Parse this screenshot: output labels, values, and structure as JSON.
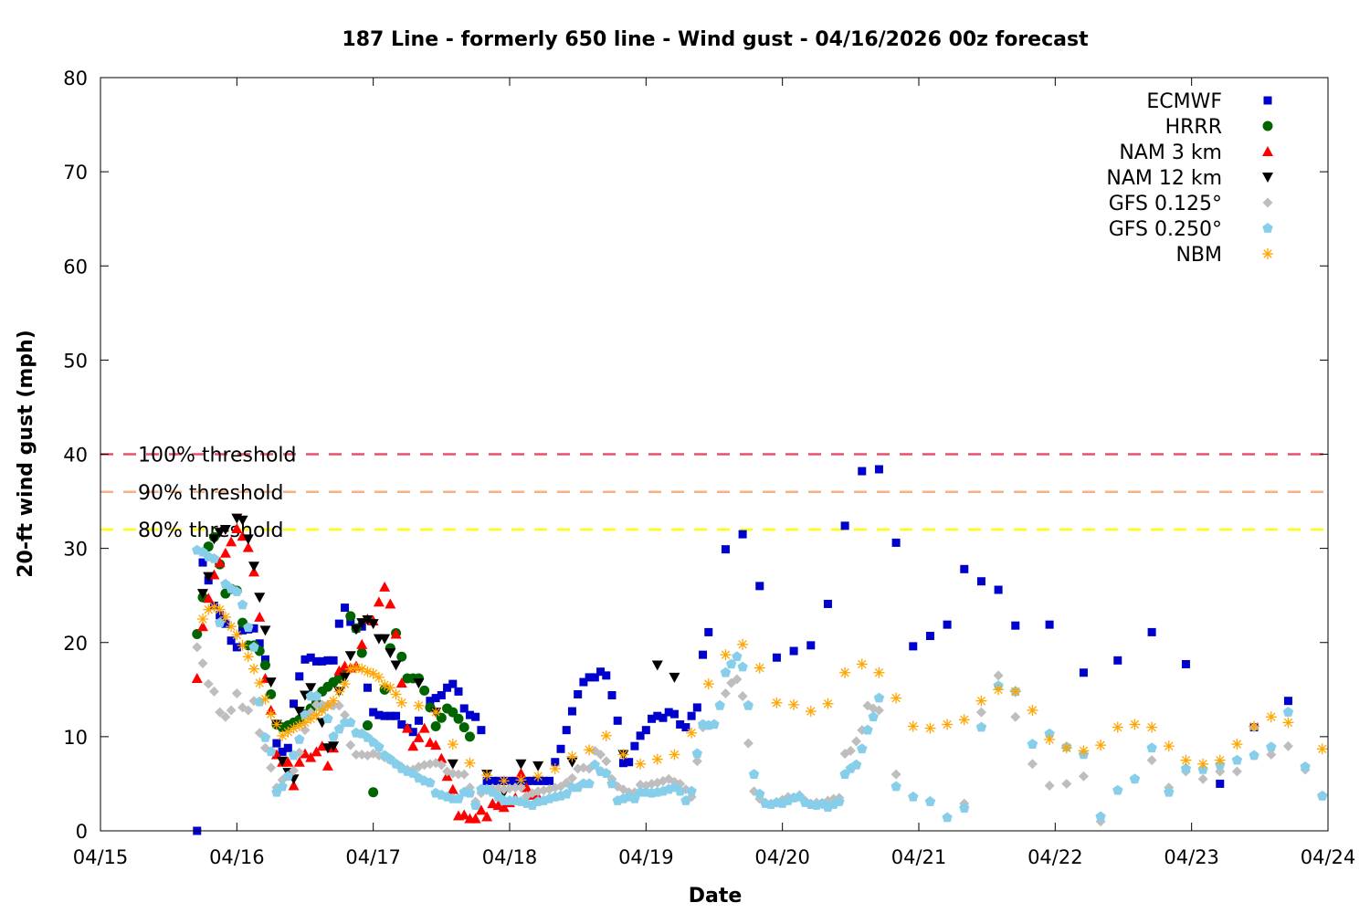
{
  "chart_data": {
    "type": "scatter",
    "title": "187 Line - formerly 650 line - Wind gust - 04/16/2026 00z forecast",
    "xlabel": "Date",
    "ylabel": "20-ft wind gust (mph)",
    "x_unit": "hours since 04/15 00z",
    "xlim": [
      0,
      216
    ],
    "ylim": [
      0,
      80
    ],
    "yticks": [
      0,
      10,
      20,
      30,
      40,
      50,
      60,
      70,
      80
    ],
    "xticks": [
      {
        "hour": 0,
        "label": "04/15"
      },
      {
        "hour": 24,
        "label": "04/16"
      },
      {
        "hour": 48,
        "label": "04/17"
      },
      {
        "hour": 72,
        "label": "04/18"
      },
      {
        "hour": 96,
        "label": "04/19"
      },
      {
        "hour": 120,
        "label": "04/20"
      },
      {
        "hour": 144,
        "label": "04/21"
      },
      {
        "hour": 168,
        "label": "04/22"
      },
      {
        "hour": 192,
        "label": "04/23"
      },
      {
        "hour": 216,
        "label": "04/24"
      }
    ],
    "legend_position": "top-right",
    "thresholds": [
      {
        "label": "100% threshold",
        "value": 40,
        "color": "#e8506e"
      },
      {
        "label": "90% threshold",
        "value": 36,
        "color": "#f4b183"
      },
      {
        "label": "80% threshold",
        "value": 32,
        "color": "#ffff00"
      }
    ],
    "series": [
      {
        "name": "ECMWF",
        "marker": "square",
        "color": "#0000cc",
        "segments": [
          {
            "start": 17,
            "step": 1,
            "values": [
              0,
              28.5,
              26.6,
              23.9,
              22.9,
              22.0,
              20.2,
              19.5,
              21.3,
              21.4,
              21.5,
              19.9,
              18.2,
              null,
              9.3,
              8.4,
              8.8,
              13.5,
              16.4,
              18.2,
              18.4,
              18.0,
              18.0,
              18.1,
              18.1,
              22.0,
              23.7,
              22.2,
              21.5,
              21.7,
              15.2,
              12.6,
              12.3,
              12.2,
              12.2,
              12.2,
              11.3,
              10.9,
              10.5,
              11.7,
              null,
              13.8,
              14.1,
              14.4,
              15.2,
              15.6,
              14.8,
              13.0,
              12.3,
              12.1,
              10.7,
              5.3,
              5.3,
              5.3,
              5.3,
              5.3,
              5.3,
              5.3,
              5.3,
              5.3,
              5.3,
              5.3,
              5.3,
              7.3,
              8.7,
              10.7,
              12.7,
              14.5,
              15.8,
              16.3,
              16.3,
              16.9,
              16.5,
              14.4,
              11.7,
              7.2,
              7.3,
              9.0,
              10.1,
              10.7,
              11.9,
              12.2,
              12.0,
              12.6,
              12.4,
              11.3,
              11.0,
              12.2,
              13.1,
              18.7,
              21.1
            ]
          },
          {
            "start": 110,
            "step": 3,
            "values": [
              29.9,
              31.5,
              26.0,
              18.4,
              19.1,
              19.7,
              24.1,
              32.4,
              38.2,
              38.4,
              30.6,
              19.6,
              20.7,
              21.9,
              27.8,
              26.5,
              25.6,
              21.8
            ]
          },
          {
            "start": 167,
            "step": 6,
            "values": [
              21.9,
              16.8,
              18.1,
              21.1,
              17.7,
              5.0,
              11.0,
              13.8
            ]
          }
        ]
      },
      {
        "name": "HRRR",
        "marker": "circle",
        "color": "#006400",
        "segments": [
          {
            "start": 17,
            "step": 1,
            "values": [
              20.9,
              24.8,
              30.2,
              31.2,
              28.3,
              25.2,
              25.7,
              25.5,
              22.1,
              19.7,
              19.7,
              19.1,
              17.6,
              14.5,
              11.3,
              11.0,
              11.2,
              11.5,
              11.8,
              12.4,
              13.0,
              13.6,
              14.8,
              15.3,
              15.8,
              16.2,
              17.0,
              22.8,
              21.5,
              18.9,
              11.2,
              4.1,
              null,
              15.0,
              19.4,
              21.0,
              18.5,
              16.2,
              16.2,
              16.2,
              14.9,
              13.1,
              11.1,
              12.0,
              13.0,
              12.6,
              11.9,
              11.0,
              10.0
            ]
          }
        ]
      },
      {
        "name": "NAM 3 km",
        "marker": "triangle-up",
        "color": "#ff0000",
        "segments": [
          {
            "start": 17,
            "step": 1,
            "values": [
              16.2,
              21.7,
              24.7,
              27.2,
              28.5,
              29.5,
              30.7,
              32.1,
              31.3,
              30.1,
              27.5,
              22.7,
              16.2,
              12.8,
              8.1,
              7.3,
              7.3,
              4.8,
              7.3,
              8.2,
              7.8,
              8.4,
              9.0,
              6.9,
              8.8,
              17.0,
              17.5,
              17.3,
              17.5,
              19.8,
              22.5,
              22.3,
              24.3,
              25.9,
              24.1,
              20.9,
              15.7,
              10.9,
              9.0,
              9.9,
              10.9,
              9.4,
              9.1,
              7.7,
              5.8,
              4.4,
              1.6,
              1.7,
              1.3,
              1.3,
              2.2,
              1.5,
              2.9,
              2.7,
              2.5,
              3.0,
              3.5,
              6.1,
              4.6,
              3.8,
              3.6
            ]
          }
        ]
      },
      {
        "name": "NAM 12 km",
        "marker": "triangle-down",
        "color": "#000000",
        "points": [
          [
            18,
            25.2
          ],
          [
            19,
            27.0
          ],
          [
            20,
            31.0
          ],
          [
            21,
            31.7
          ],
          [
            22,
            32.0
          ],
          [
            24,
            33.2
          ],
          [
            25,
            33.0
          ],
          [
            26,
            31.0
          ],
          [
            27,
            28.1
          ],
          [
            28,
            24.8
          ],
          [
            29,
            21.3
          ],
          [
            30,
            15.8
          ],
          [
            31,
            11.3
          ],
          [
            32,
            7.4
          ],
          [
            33,
            6.2
          ],
          [
            34,
            5.5
          ],
          [
            35,
            12.7
          ],
          [
            36,
            14.4
          ],
          [
            37,
            15.2
          ],
          [
            39,
            11.5
          ],
          [
            40,
            8.8
          ],
          [
            41,
            9.0
          ],
          [
            42,
            14.8
          ],
          [
            43,
            16.3
          ],
          [
            44,
            18.6
          ],
          [
            45,
            21.4
          ],
          [
            46,
            22.1
          ],
          [
            47,
            22.4
          ],
          [
            48,
            22.0
          ],
          [
            49,
            20.4
          ],
          [
            50,
            20.4
          ],
          [
            51,
            18.9
          ],
          [
            52,
            17.6
          ],
          [
            56,
            15.7
          ],
          [
            59,
            12.6
          ],
          [
            62,
            7.1
          ],
          [
            68,
            6.0
          ],
          [
            71,
            4.1
          ],
          [
            74,
            7.1
          ],
          [
            77,
            6.9
          ],
          [
            83,
            7.3
          ],
          [
            92,
            8.1
          ],
          [
            98,
            17.6
          ],
          [
            101,
            16.3
          ]
        ]
      },
      {
        "name": "GFS 0.125°",
        "marker": "diamond",
        "color": "#bebebe",
        "segments": [
          {
            "start": 17,
            "step": 1,
            "values": [
              19.5,
              17.8,
              15.6,
              14.8,
              12.6,
              12.1,
              12.8,
              14.6,
              13.1,
              12.8,
              13.8,
              10.4,
              8.8,
              6.7,
              4.6,
              5.4,
              5.8,
              6.4,
              8.3,
              10.7,
              12.6,
              13.4,
              13.4,
              13.4,
              13.3,
              13.3,
              12.3,
              9.1,
              8.1,
              8.1,
              8.0,
              8.2,
              8.0,
              7.8,
              7.5,
              7.1,
              6.8,
              6.5,
              6.5,
              6.8,
              7.0,
              7.1,
              7.2,
              7.0,
              6.3,
              6.1,
              6.0,
              6.0,
              4.6,
              3.1,
              4.0,
              4.3,
              4.5,
              4.5,
              4.4,
              4.5,
              4.6,
              4.6,
              3.7,
              4.0,
              4.2,
              4.3,
              4.4,
              4.6,
              4.7,
              5.1,
              5.6,
              6.6,
              6.7,
              6.6,
              8.5,
              8.1,
              7.4,
              5.5,
              4.7,
              4.4,
              4.1,
              4.1,
              4.9,
              4.8,
              5.0,
              5.1,
              5.3,
              5.5,
              5.2,
              5.0,
              4.4,
              3.6,
              7.4,
              11.0
            ]
          },
          {
            "start": 110,
            "step": 1,
            "values": [
              14.6,
              15.7,
              16.1,
              14.3,
              9.3,
              4.2,
              3.4,
              3.0,
              2.9,
              3.0,
              3.3,
              3.6,
              3.5,
              3.8,
              3.2,
              2.9,
              3.0,
              2.8,
              3.2,
              3.4,
              3.5,
              8.2,
              8.5,
              9.5,
              10.7,
              13.3,
              13.0,
              12.8
            ]
          },
          {
            "start": 140,
            "step": 3,
            "values": [
              6.0,
              null,
              null,
              null,
              2.9,
              12.6,
              16.5,
              12.1,
              7.1,
              4.8,
              5.0,
              5.8,
              1.0,
              null,
              5.5,
              7.5,
              4.6,
              6.3,
              5.5,
              6.3,
              6.3,
              11.0,
              8.1,
              9.0,
              6.5,
              3.7
            ]
          }
        ]
      },
      {
        "name": "GFS 0.250°",
        "marker": "pentagon",
        "color": "#87ceeb",
        "segments": [
          {
            "start": 17,
            "step": 1,
            "values": [
              29.8,
              29.6,
              29.1,
              28.9,
              22.1,
              26.2,
              25.7,
              25.4,
              24.0,
              21.6,
              19.5,
              13.7,
              9.9,
              8.4,
              4.1,
              4.7,
              5.8,
              8.0,
              9.7,
              12.3,
              14.3,
              14.3,
              13.0,
              11.9,
              10.0,
              10.8,
              11.5,
              11.5,
              10.4,
              10.3,
              9.9,
              9.4,
              8.9,
              8.0,
              7.6,
              7.1,
              6.6,
              6.3,
              6.1,
              5.6,
              5.3,
              5.1,
              4.0,
              3.8,
              3.6,
              3.4,
              3.4,
              4.1,
              4.0,
              2.7,
              4.4,
              4.4,
              4.1,
              3.6,
              3.2,
              3.2,
              3.2,
              3.1,
              2.9,
              2.7,
              3.1,
              3.2,
              3.4,
              3.6,
              3.7,
              3.9,
              4.6,
              4.6,
              5.0,
              5.0,
              7.0,
              6.3,
              6.1,
              5.0,
              3.2,
              3.4,
              3.6,
              3.4,
              4.1,
              4.1,
              4.0,
              4.1,
              4.2,
              4.4,
              4.6,
              4.2,
              3.2,
              4.2,
              8.2,
              11.3,
              11.2,
              11.3,
              13.3,
              16.8,
              17.7,
              18.5,
              17.4,
              13.3,
              6.0,
              3.9,
              2.9,
              2.8,
              3.0,
              2.9,
              3.2,
              3.5,
              3.6,
              3.0,
              2.8,
              2.7,
              2.9,
              2.5,
              2.8,
              3.1,
              6.0,
              6.6,
              7.0,
              8.7,
              10.7,
              12.1,
              14.1
            ]
          },
          {
            "start": 140,
            "step": 3,
            "values": [
              4.7,
              3.6,
              3.1,
              1.4,
              2.4,
              11.0,
              15.4,
              14.8,
              9.2,
              10.3,
              8.9,
              8.1,
              1.5,
              4.3,
              5.5,
              8.8,
              4.1,
              6.6,
              6.5,
              7.0,
              7.5,
              8.0,
              8.9,
              12.6,
              6.8,
              3.7
            ]
          }
        ]
      },
      {
        "name": "NBM",
        "marker": "asterisk",
        "color": "#ffa500",
        "segments": [
          {
            "start": 18,
            "step": 1,
            "values": [
              22.5,
              23.5,
              23.8,
              23.5,
              22.7,
              21.7,
              20.8,
              19.7,
              18.5,
              17.2,
              15.7,
              14.0,
              12.4,
              11.3,
              10.1,
              10.5,
              10.9,
              11.2,
              11.5,
              11.9,
              12.3,
              12.8,
              13.3,
              13.8,
              14.8,
              15.6,
              17.2,
              17.3,
              17.2,
              16.9,
              16.7,
              16.3,
              15.5,
              15.2,
              14.5,
              13.6
            ]
          },
          {
            "start": 56,
            "step": 3,
            "values": [
              13.3,
              12.6,
              9.2,
              7.2,
              5.9,
              5.3,
              5.4,
              5.8,
              6.6,
              7.9,
              8.6,
              10.1,
              8.1,
              7.1,
              7.6,
              8.1,
              10.4,
              15.6,
              18.7,
              19.8,
              17.3,
              13.6,
              13.4,
              12.7,
              13.5,
              16.8,
              17.7,
              16.8,
              14.1,
              11.1,
              10.9,
              11.3,
              11.8,
              13.8,
              15.0,
              14.8,
              12.8,
              9.7,
              8.8,
              8.5,
              9.1,
              11.0,
              11.3,
              11.0,
              9.0,
              7.5,
              7.1,
              7.5,
              9.2,
              11.1,
              12.1,
              11.5,
              null,
              8.7
            ]
          }
        ]
      }
    ]
  }
}
